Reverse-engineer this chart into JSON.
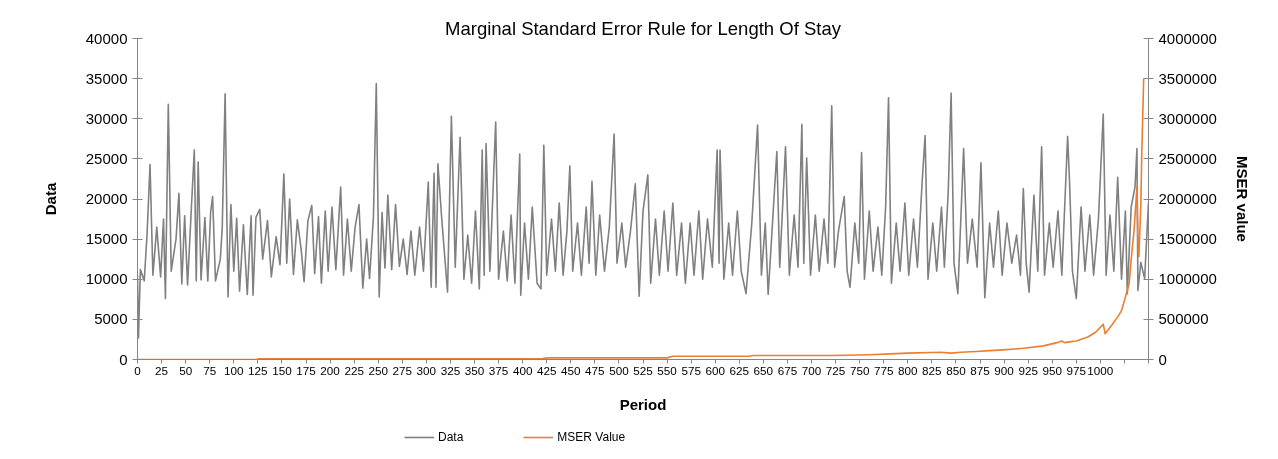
{
  "chart_data": {
    "type": "line",
    "title": "Marginal Standard Error Rule for Length Of Stay",
    "xlabel": "Period",
    "ylabel": "Data",
    "y2label": "MSER value",
    "xlim": [
      0,
      1050
    ],
    "xticks": [
      0,
      25,
      50,
      75,
      100,
      125,
      150,
      175,
      200,
      225,
      250,
      275,
      300,
      325,
      350,
      375,
      400,
      425,
      450,
      475,
      500,
      525,
      550,
      575,
      600,
      625,
      650,
      675,
      700,
      725,
      750,
      775,
      800,
      825,
      850,
      875,
      900,
      925,
      950,
      975,
      1000,
      {
        "value": 1025,
        "label": null
      },
      {
        "value": 1050,
        "label": null
      }
    ],
    "ylim": [
      0,
      40000
    ],
    "yticks": [
      0,
      5000,
      10000,
      15000,
      20000,
      25000,
      30000,
      35000,
      40000
    ],
    "y2lim": [
      0,
      4000000
    ],
    "y2ticks": [
      0,
      500000,
      1000000,
      1500000,
      2000000,
      2500000,
      3000000,
      3500000,
      4000000
    ],
    "legend": "bottom",
    "series": [
      {
        "name": "Data",
        "color": "#808080",
        "x": [
          0,
          1,
          3,
          7,
          10,
          13,
          16,
          20,
          24,
          27,
          29,
          32,
          35,
          40,
          43,
          46,
          49,
          52,
          56,
          59,
          61,
          63,
          66,
          70,
          73,
          76,
          78,
          81,
          86,
          88,
          91,
          94,
          97,
          100,
          103,
          106,
          110,
          114,
          118,
          120,
          123,
          127,
          130,
          135,
          139,
          144,
          148,
          152,
          155,
          158,
          162,
          166,
          170,
          173,
          177,
          181,
          184,
          188,
          191,
          195,
          198,
          202,
          206,
          211,
          214,
          218,
          222,
          226,
          230,
          234,
          238,
          241,
          245,
          248,
          251,
          254,
          257,
          260,
          264,
          268,
          272,
          276,
          280,
          284,
          288,
          293,
          297,
          302,
          305,
          308,
          310,
          312,
          316,
          322,
          326,
          330,
          335,
          339,
          343,
          347,
          351,
          355,
          358,
          360,
          362,
          366,
          372,
          375,
          380,
          384,
          388,
          392,
          397,
          398,
          402,
          406,
          410,
          415,
          419,
          422,
          425,
          430,
          434,
          438,
          442,
          446,
          449,
          452,
          457,
          461,
          466,
          469,
          472,
          476,
          480,
          485,
          490,
          495,
          498,
          503,
          507,
          512,
          517,
          521,
          525,
          530,
          533,
          538,
          542,
          547,
          551,
          556,
          560,
          565,
          569,
          574,
          578,
          583,
          587,
          592,
          597,
          602,
          604,
          605,
          609,
          614,
          618,
          623,
          627,
          632,
          638,
          644,
          648,
          652,
          655,
          660,
          664,
          667,
          673,
          677,
          682,
          686,
          690,
          692,
          695,
          699,
          704,
          708,
          713,
          717,
          721,
          724,
          728,
          734,
          737,
          740,
          745,
          749,
          752,
          755,
          760,
          764,
          769,
          773,
          777,
          780,
          783,
          788,
          792,
          797,
          801,
          806,
          810,
          815,
          818,
          821,
          826,
          830,
          835,
          838,
          842,
          845,
          848,
          852,
          858,
          862,
          867,
          872,
          876,
          880,
          885,
          889,
          894,
          898,
          903,
          908,
          913,
          917,
          920,
          923,
          926,
          931,
          935,
          939,
          942,
          947,
          951,
          956,
          960,
          966,
          968,
          971,
          975,
          980,
          984,
          989,
          993,
          998,
          1003,
          1006,
          1010,
          1014,
          1018,
          1022,
          1026,
          1028,
          1032,
          1036,
          1038,
          1039,
          1042,
          1046,
          1050
        ],
        "values": [
          10500,
          2700,
          11200,
          9800,
          15800,
          24300,
          10500,
          16500,
          10300,
          17500,
          7600,
          31800,
          11000,
          15000,
          20700,
          9400,
          17900,
          9300,
          19000,
          26100,
          9800,
          24600,
          9900,
          17700,
          9800,
          18400,
          20300,
          9800,
          12500,
          16400,
          33100,
          7800,
          19300,
          11000,
          17600,
          8500,
          16800,
          8100,
          17900,
          8000,
          17700,
          18700,
          12500,
          17300,
          10300,
          15300,
          11800,
          23100,
          12000,
          20000,
          10600,
          17400,
          13700,
          9700,
          17300,
          19200,
          10700,
          17800,
          9500,
          18500,
          11000,
          19000,
          11200,
          21500,
          10500,
          17500,
          11000,
          16500,
          19300,
          8900,
          15000,
          10100,
          17700,
          34400,
          7800,
          18300,
          11400,
          20500,
          11200,
          19300,
          11600,
          15000,
          10600,
          16000,
          10500,
          16500,
          11000,
          22100,
          9000,
          23200,
          9000,
          24400,
          17500,
          8400,
          30300,
          11500,
          27700,
          10000,
          15500,
          9500,
          18500,
          8800,
          26100,
          10500,
          26900,
          11000,
          29600,
          10000,
          16000,
          9800,
          18000,
          9500,
          25600,
          8000,
          17000,
          10000,
          19000,
          9500,
          8800,
          26700,
          10500,
          17500,
          11000,
          19500,
          10500,
          16000,
          24100,
          11000,
          17000,
          10500,
          19000,
          12000,
          22200,
          10500,
          18000,
          11000,
          16500,
          28100,
          12000,
          17000,
          11500,
          16000,
          21900,
          7900,
          18500,
          23000,
          9500,
          17500,
          10500,
          18500,
          11000,
          19500,
          10500,
          17000,
          9500,
          17000,
          10500,
          18500,
          10000,
          17500,
          11500,
          26100,
          12000,
          26100,
          10000,
          17000,
          10500,
          18500,
          11000,
          8200,
          17000,
          29200,
          10500,
          17000,
          8100,
          18000,
          25900,
          11500,
          26500,
          10500,
          18000,
          11500,
          29300,
          12000,
          25100,
          10500,
          18000,
          11000,
          17500,
          12000,
          31600,
          11500,
          16000,
          20300,
          11000,
          9000,
          17000,
          12000,
          25800,
          10000,
          18500,
          11000,
          16500,
          10500,
          19000,
          32600,
          9500,
          17000,
          11000,
          19500,
          10500,
          17500,
          11500,
          22300,
          27900,
          10000,
          17000,
          11000,
          19000,
          11500,
          20900,
          33200,
          12000,
          8200,
          26300,
          12000,
          17500,
          11500,
          24500,
          7700,
          17000,
          11500,
          18500,
          10500,
          17000,
          12000,
          15500,
          10500,
          21300,
          12000,
          8400,
          20500,
          11000,
          26500,
          10500,
          17000,
          11500,
          18500,
          10500,
          27800,
          22100,
          11000,
          7600,
          19000,
          11000,
          18000,
          10500,
          17500,
          30600,
          10500,
          18000,
          11000,
          22700,
          10000,
          18500,
          8200,
          19000,
          21500,
          26300,
          8600,
          12100,
          10100,
          19600
        ]
      },
      {
        "name": "MSER Value",
        "color": "#ed7d31",
        "axis": "y2",
        "x": [
          0,
          124,
          126,
          420,
          425,
          550,
          556,
          635,
          640,
          720,
          760,
          782,
          800,
          834,
          845,
          855,
          871,
          885,
          899,
          920,
          941,
          955,
          960,
          963,
          968,
          975,
          987,
          995,
          1003,
          1005,
          1012,
          1019,
          1022,
          1027,
          1030,
          1032,
          1035,
          1038,
          1039,
          1040,
          1042,
          1043,
          1045
        ],
        "values": [
          0,
          0,
          10000,
          10000,
          20000,
          20000,
          40000,
          40000,
          50000,
          50000,
          60000,
          70000,
          80000,
          90000,
          80000,
          90000,
          100000,
          110000,
          120000,
          140000,
          170000,
          210000,
          230000,
          210000,
          220000,
          230000,
          280000,
          340000,
          440000,
          320000,
          430000,
          550000,
          610000,
          820000,
          950000,
          1240000,
          1610000,
          2150000,
          1520000,
          1280000,
          1900000,
          2560000,
          3500000
        ]
      }
    ]
  }
}
